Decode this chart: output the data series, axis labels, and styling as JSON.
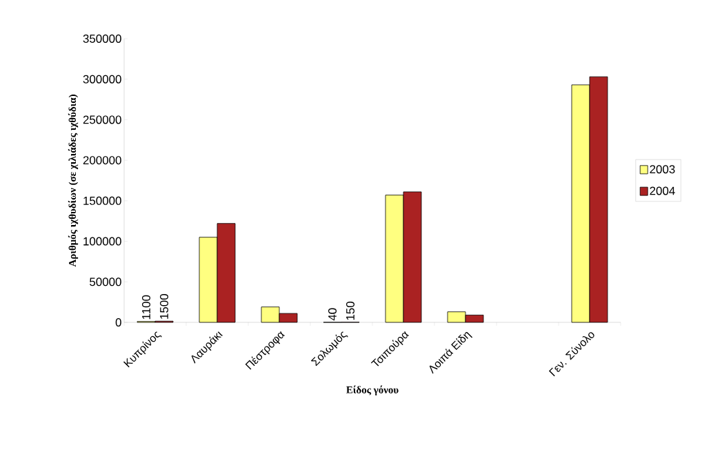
{
  "chart_data": {
    "type": "bar",
    "xlabel": "Είδος γόνου",
    "ylabel": "Αριθμός ιχθυδίων (σε χιλιάδες ιχθύδια)",
    "categories": [
      "Κυπρίνος",
      "Λαυράκι",
      "Πέστροφα",
      "Σολωμός",
      "Τσιπούρα",
      "Λοιπά Είδη",
      null,
      "Γεν. Σύνολο"
    ],
    "series": [
      {
        "name": "2003",
        "color": "#ffff80",
        "values": [
          1100,
          105000,
          19000,
          40,
          157000,
          13000,
          null,
          293000
        ],
        "value_labels": [
          "1100",
          null,
          null,
          "40",
          null,
          null,
          null,
          null
        ]
      },
      {
        "name": "2004",
        "color": "#aa2222",
        "values": [
          1500,
          122000,
          11000,
          150,
          161000,
          9000,
          null,
          303000
        ],
        "value_labels": [
          "1500",
          null,
          null,
          "150",
          null,
          null,
          null,
          null
        ]
      }
    ],
    "ylim": [
      0,
      350000
    ],
    "yticks": [
      0,
      50000,
      100000,
      150000,
      200000,
      250000,
      300000,
      350000
    ],
    "grid": false,
    "legend": "right"
  }
}
